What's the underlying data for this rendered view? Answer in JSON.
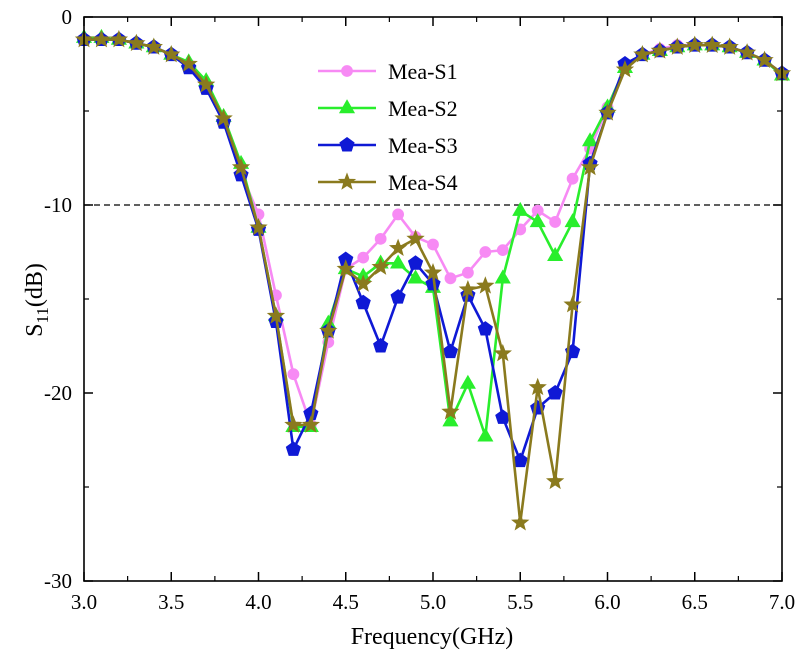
{
  "chart_data": {
    "type": "line",
    "title": "",
    "xlabel": "Frequency(GHz)",
    "ylabel_main": "S",
    "ylabel_sub": "11",
    "ylabel_unit": "(dB)",
    "xlim": [
      3.0,
      7.0
    ],
    "ylim": [
      -30,
      0
    ],
    "x_ticks": [
      3.0,
      3.5,
      4.0,
      4.5,
      5.0,
      5.5,
      6.0,
      6.5,
      7.0
    ],
    "x_tick_labels": [
      "3.0",
      "3.5",
      "4.0",
      "4.5",
      "5.0",
      "5.5",
      "6.0",
      "6.5",
      "7.0"
    ],
    "y_ticks": [
      0,
      -10,
      -20,
      -30
    ],
    "y_tick_labels": [
      "0",
      "-10",
      "-20",
      "-30"
    ],
    "reference_line": -10,
    "legend_position": "upper-center",
    "x": [
      3.0,
      3.1,
      3.2,
      3.3,
      3.4,
      3.5,
      3.6,
      3.7,
      3.8,
      3.9,
      4.0,
      4.1,
      4.2,
      4.3,
      4.4,
      4.5,
      4.6,
      4.7,
      4.8,
      4.9,
      5.0,
      5.1,
      5.2,
      5.3,
      5.4,
      5.5,
      5.6,
      5.7,
      5.8,
      5.9,
      6.0,
      6.1,
      6.2,
      6.3,
      6.4,
      6.5,
      6.6,
      6.7,
      6.8,
      6.9,
      7.0
    ],
    "series": [
      {
        "name": "Mea-S1",
        "color": "#f78af4",
        "marker": "circle",
        "values": [
          -1.2,
          -1.2,
          -1.2,
          -1.4,
          -1.6,
          -2.0,
          -2.5,
          -3.7,
          -5.5,
          -8.3,
          -10.5,
          -14.8,
          -19.0,
          -21.7,
          -17.3,
          -13.4,
          -12.8,
          -11.8,
          -10.5,
          -11.7,
          -12.1,
          -13.9,
          -13.6,
          -12.5,
          -12.4,
          -11.3,
          -10.3,
          -10.9,
          -8.6,
          -7.0,
          -4.8,
          -2.7,
          -2.0,
          -1.7,
          -1.5,
          -1.5,
          -1.5,
          -1.6,
          -1.9,
          -2.3,
          -3.0
        ]
      },
      {
        "name": "Mea-S2",
        "color": "#29ee2c",
        "marker": "triangle",
        "values": [
          -1.1,
          -1.1,
          -1.2,
          -1.4,
          -1.6,
          -2.0,
          -2.4,
          -3.4,
          -5.3,
          -7.8,
          -11.2,
          -15.9,
          -21.8,
          -21.8,
          -16.3,
          -13.4,
          -13.8,
          -13.1,
          -13.1,
          -13.9,
          -14.4,
          -21.5,
          -19.5,
          -22.3,
          -13.9,
          -10.3,
          -10.9,
          -12.7,
          -10.9,
          -6.6,
          -4.8,
          -2.7,
          -2.0,
          -1.8,
          -1.6,
          -1.5,
          -1.5,
          -1.6,
          -1.9,
          -2.3,
          -3.1
        ]
      },
      {
        "name": "Mea-S3",
        "color": "#0f19d5",
        "marker": "pentagon",
        "values": [
          -1.2,
          -1.2,
          -1.2,
          -1.4,
          -1.6,
          -2.0,
          -2.7,
          -3.8,
          -5.6,
          -8.4,
          -11.3,
          -16.2,
          -23.0,
          -21.1,
          -16.7,
          -12.9,
          -15.2,
          -17.5,
          -14.9,
          -13.1,
          -14.2,
          -17.8,
          -14.8,
          -16.6,
          -21.3,
          -23.6,
          -20.8,
          -20.0,
          -17.8,
          -7.8,
          -5.1,
          -2.5,
          -2.0,
          -1.8,
          -1.6,
          -1.5,
          -1.5,
          -1.6,
          -1.9,
          -2.3,
          -3.0
        ]
      },
      {
        "name": "Mea-S4",
        "color": "#8a7a1e",
        "marker": "star",
        "values": [
          -1.2,
          -1.2,
          -1.2,
          -1.4,
          -1.6,
          -2.0,
          -2.5,
          -3.6,
          -5.4,
          -8.0,
          -11.2,
          -15.9,
          -21.7,
          -21.7,
          -16.7,
          -13.4,
          -14.2,
          -13.3,
          -12.3,
          -11.8,
          -13.6,
          -21.0,
          -14.5,
          -14.3,
          -17.9,
          -26.9,
          -19.7,
          -24.7,
          -15.3,
          -8.0,
          -5.1,
          -2.8,
          -2.0,
          -1.8,
          -1.6,
          -1.5,
          -1.5,
          -1.6,
          -1.9,
          -2.3,
          -3.0
        ]
      }
    ]
  }
}
